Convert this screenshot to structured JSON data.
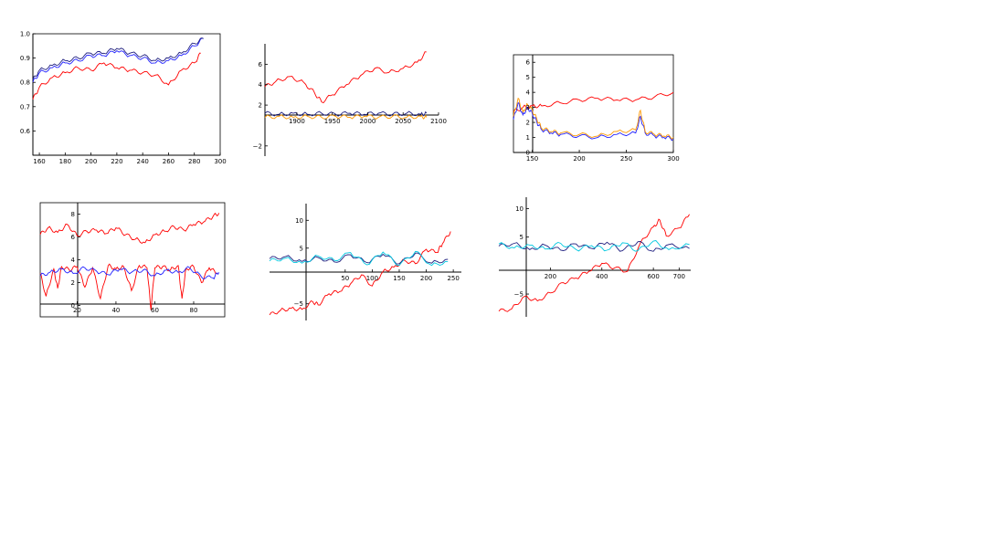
{
  "colors": {
    "red": "#ff0000",
    "blue": "#2020ff",
    "navy": "#202080",
    "orange": "#ff9900",
    "cyan": "#00c8e0",
    "axis": "#000000"
  },
  "chart_data": [
    {
      "type": "line",
      "frame": true,
      "xlim": [
        155,
        300
      ],
      "ylim": [
        0.5,
        1.0
      ],
      "xticks": [
        160,
        180,
        200,
        220,
        240,
        260,
        280,
        300
      ],
      "yticks": [
        0.6,
        0.7,
        0.8,
        0.9,
        1.0
      ],
      "xtick_labels": [
        "160",
        "180",
        "200",
        "220",
        "240",
        "260",
        "280",
        "300"
      ],
      "ytick_labels": [
        "0.6",
        "0.7",
        "0.8",
        "0.9",
        "1.0"
      ],
      "series": [
        {
          "color": "red",
          "x": [
            155,
            160,
            170,
            180,
            190,
            200,
            210,
            220,
            230,
            240,
            250,
            260,
            270,
            280,
            285
          ],
          "y": [
            0.73,
            0.78,
            0.82,
            0.84,
            0.86,
            0.85,
            0.88,
            0.86,
            0.85,
            0.84,
            0.83,
            0.79,
            0.85,
            0.88,
            0.92
          ]
        },
        {
          "color": "blue",
          "x": [
            155,
            160,
            170,
            180,
            190,
            200,
            210,
            220,
            230,
            240,
            250,
            260,
            270,
            280,
            287
          ],
          "y": [
            0.8,
            0.84,
            0.86,
            0.88,
            0.89,
            0.91,
            0.91,
            0.93,
            0.91,
            0.9,
            0.88,
            0.89,
            0.91,
            0.95,
            0.98
          ]
        },
        {
          "color": "navy",
          "x": [
            155,
            160,
            170,
            180,
            190,
            200,
            210,
            220,
            230,
            240,
            250,
            260,
            270,
            280,
            287
          ],
          "y": [
            0.81,
            0.85,
            0.87,
            0.89,
            0.9,
            0.92,
            0.92,
            0.94,
            0.92,
            0.91,
            0.89,
            0.9,
            0.92,
            0.96,
            0.98
          ]
        }
      ]
    },
    {
      "type": "line",
      "frame": false,
      "xlim": [
        1855,
        2100
      ],
      "ylim": [
        -3,
        8
      ],
      "xticks": [
        1900,
        1950,
        2000,
        2050,
        2100
      ],
      "yticks": [
        -2,
        2,
        4,
        6
      ],
      "xtick_labels": [
        "1900",
        "1950",
        "2000",
        "2050",
        "2100"
      ],
      "ytick_labels": [
        "−2",
        "2",
        "4",
        "6"
      ],
      "series": [
        {
          "color": "red",
          "x": [
            1855,
            1870,
            1890,
            1910,
            1925,
            1935,
            1950,
            1970,
            1990,
            2010,
            2030,
            2050,
            2070,
            2083
          ],
          "y": [
            3.8,
            4.3,
            4.8,
            4.2,
            3.2,
            2.3,
            3.0,
            4.0,
            4.9,
            5.6,
            5.2,
            5.6,
            6.2,
            7.2
          ]
        },
        {
          "color": "navy",
          "x": [
            1855,
            1875,
            1895,
            1915,
            1935,
            1955,
            1975,
            1995,
            2015,
            2035,
            2055,
            2075,
            2083
          ],
          "y": [
            1.2,
            1.1,
            1.2,
            1.1,
            1.2,
            1.1,
            1.2,
            1.1,
            1.2,
            1.1,
            1.2,
            1.1,
            1.2
          ]
        },
        {
          "color": "orange",
          "x": [
            1855,
            1875,
            1895,
            1915,
            1935,
            1955,
            1975,
            1995,
            2015,
            2035,
            2055,
            2075,
            2083
          ],
          "y": [
            0.8,
            0.9,
            0.8,
            0.9,
            0.8,
            0.9,
            0.8,
            0.9,
            0.8,
            0.9,
            0.8,
            0.9,
            0.8
          ]
        }
      ]
    },
    {
      "type": "line",
      "frame": true,
      "xlim": [
        130,
        300
      ],
      "ylim": [
        0,
        6.5
      ],
      "xticks": [
        150,
        200,
        250,
        300
      ],
      "yticks": [
        0,
        1,
        2,
        3,
        4,
        5,
        6
      ],
      "xtick_labels": [
        "150",
        "200",
        "250",
        "300"
      ],
      "ytick_labels": [
        "0",
        "1",
        "2",
        "3",
        "4",
        "5",
        "6"
      ],
      "series": [
        {
          "color": "red",
          "x": [
            130,
            140,
            150,
            160,
            180,
            200,
            220,
            240,
            260,
            280,
            300
          ],
          "y": [
            2.7,
            3.0,
            3.1,
            3.1,
            3.3,
            3.5,
            3.6,
            3.5,
            3.5,
            3.7,
            4.0
          ]
        },
        {
          "color": "blue",
          "x": [
            130,
            135,
            140,
            145,
            150,
            155,
            160,
            170,
            180,
            200,
            220,
            240,
            260,
            265,
            270,
            280,
            290,
            300
          ],
          "y": [
            2.2,
            3.3,
            2.5,
            3.0,
            2.6,
            2.0,
            1.5,
            1.3,
            1.2,
            1.1,
            1.0,
            1.2,
            1.3,
            2.4,
            1.3,
            1.1,
            1.0,
            0.9
          ]
        },
        {
          "color": "orange",
          "x": [
            130,
            135,
            140,
            145,
            150,
            155,
            160,
            170,
            180,
            200,
            220,
            240,
            260,
            265,
            270,
            280,
            290,
            300
          ],
          "y": [
            2.4,
            3.6,
            2.7,
            3.2,
            2.8,
            2.2,
            1.6,
            1.4,
            1.3,
            1.2,
            1.1,
            1.4,
            1.5,
            2.8,
            1.4,
            1.2,
            1.1,
            1.0
          ]
        }
      ]
    },
    {
      "type": "line",
      "frame": true,
      "xlim": [
        1,
        96
      ],
      "ylim": [
        -1,
        9
      ],
      "xticks": [
        20,
        40,
        60,
        80
      ],
      "yticks": [
        0,
        2,
        4,
        6,
        8
      ],
      "xtick_labels": [
        "20",
        "40",
        "60",
        "80"
      ],
      "ytick_labels": [
        "0",
        "2",
        "4",
        "6",
        "8"
      ],
      "series": [
        {
          "color": "red",
          "x": [
            1,
            5,
            10,
            15,
            20,
            25,
            30,
            35,
            40,
            45,
            50,
            55,
            60,
            65,
            70,
            75,
            80,
            85,
            90,
            93
          ],
          "y": [
            6.2,
            6.8,
            6.4,
            7.1,
            6.1,
            6.5,
            6.6,
            6.3,
            6.8,
            6.2,
            5.8,
            5.5,
            6.2,
            6.5,
            6.9,
            6.6,
            7.1,
            7.3,
            7.8,
            8.1
          ]
        },
        {
          "color": "red",
          "x": [
            1,
            4,
            8,
            10,
            12,
            16,
            20,
            24,
            28,
            32,
            36,
            40,
            44,
            48,
            52,
            56,
            58,
            60,
            64,
            68,
            72,
            74,
            76,
            80,
            84,
            88,
            92
          ],
          "y": [
            2.8,
            0.8,
            3.2,
            1.5,
            3.4,
            3.1,
            3.4,
            1.6,
            3.3,
            0.6,
            3.5,
            3.2,
            3.4,
            1.3,
            3.5,
            3.3,
            -0.4,
            3.3,
            3.4,
            3.1,
            3.5,
            0.6,
            3.2,
            3.4,
            2.0,
            3.3,
            2.8
          ]
        },
        {
          "color": "blue",
          "x": [
            1,
            6,
            12,
            18,
            24,
            30,
            36,
            42,
            48,
            54,
            60,
            66,
            72,
            78,
            84,
            90,
            93
          ],
          "y": [
            2.6,
            2.9,
            3.2,
            2.8,
            3.3,
            3.0,
            2.7,
            3.2,
            2.9,
            3.1,
            2.6,
            3.1,
            2.9,
            3.3,
            2.5,
            2.4,
            2.9
          ]
        }
      ]
    },
    {
      "type": "line",
      "frame": false,
      "xlim": [
        -90,
        265
      ],
      "ylim": [
        -8,
        13
      ],
      "xticks": [
        50,
        100,
        150,
        200,
        250
      ],
      "yticks": [
        -5,
        5,
        10
      ],
      "xtick_labels": [
        "50",
        "100",
        "150",
        "200",
        "250"
      ],
      "ytick_labels": [
        "−5",
        "5",
        "10"
      ],
      "series": [
        {
          "color": "red",
          "x": [
            -90,
            -70,
            -50,
            -30,
            -10,
            0,
            20,
            40,
            60,
            80,
            100,
            120,
            140,
            160,
            180,
            200,
            220,
            230,
            245
          ],
          "y": [
            -7.0,
            -6.2,
            -5.8,
            -6.0,
            -4.6,
            -5.2,
            -3.2,
            -2.8,
            -1.4,
            0.2,
            -1.8,
            0.8,
            1.6,
            2.8,
            2.2,
            4.8,
            4.2,
            5.8,
            8.0
          ]
        },
        {
          "color": "navy",
          "x": [
            -90,
            -60,
            -30,
            0,
            30,
            60,
            90,
            120,
            150,
            180,
            210,
            240
          ],
          "y": [
            3.1,
            3.5,
            2.6,
            3.3,
            2.5,
            3.8,
            2.4,
            3.9,
            2.2,
            4.1,
            2.3,
            3.0
          ]
        },
        {
          "color": "cyan",
          "x": [
            -90,
            -60,
            -30,
            0,
            30,
            60,
            90,
            120,
            150,
            180,
            210,
            240
          ],
          "y": [
            2.7,
            3.2,
            2.3,
            3.6,
            2.8,
            4.2,
            2.0,
            4.3,
            1.9,
            4.4,
            1.9,
            2.6
          ]
        }
      ]
    },
    {
      "type": "line",
      "frame": false,
      "xlim": [
        0,
        745
      ],
      "ylim": [
        -9,
        12
      ],
      "xticks": [
        200,
        400,
        600,
        700
      ],
      "yticks": [
        -5,
        5,
        10
      ],
      "xtick_labels": [
        "200",
        "400",
        "600",
        "700"
      ],
      "ytick_labels": [
        "−5",
        "5",
        "10"
      ],
      "series": [
        {
          "color": "red",
          "x": [
            0,
            50,
            100,
            150,
            200,
            250,
            300,
            350,
            400,
            450,
            500,
            550,
            600,
            625,
            650,
            700,
            740
          ],
          "y": [
            -8.0,
            -7.6,
            -5.4,
            -6.2,
            -4.8,
            -3.0,
            -2.2,
            -1.0,
            0.4,
            -0.4,
            -1.0,
            4.0,
            6.8,
            8.0,
            5.2,
            6.6,
            9.0
          ]
        },
        {
          "color": "navy",
          "x": [
            0,
            60,
            120,
            180,
            240,
            300,
            360,
            420,
            480,
            540,
            600,
            660,
            740
          ],
          "y": [
            3.4,
            3.9,
            2.8,
            3.6,
            2.7,
            3.8,
            3.0,
            4.1,
            2.6,
            4.2,
            2.5,
            3.7,
            3.0
          ]
        },
        {
          "color": "cyan",
          "x": [
            0,
            60,
            120,
            180,
            240,
            300,
            360,
            420,
            480,
            540,
            600,
            660,
            740
          ],
          "y": [
            3.8,
            3.1,
            3.6,
            2.9,
            3.9,
            2.8,
            3.5,
            2.7,
            4.0,
            2.6,
            4.3,
            2.8,
            3.7
          ]
        }
      ]
    }
  ]
}
